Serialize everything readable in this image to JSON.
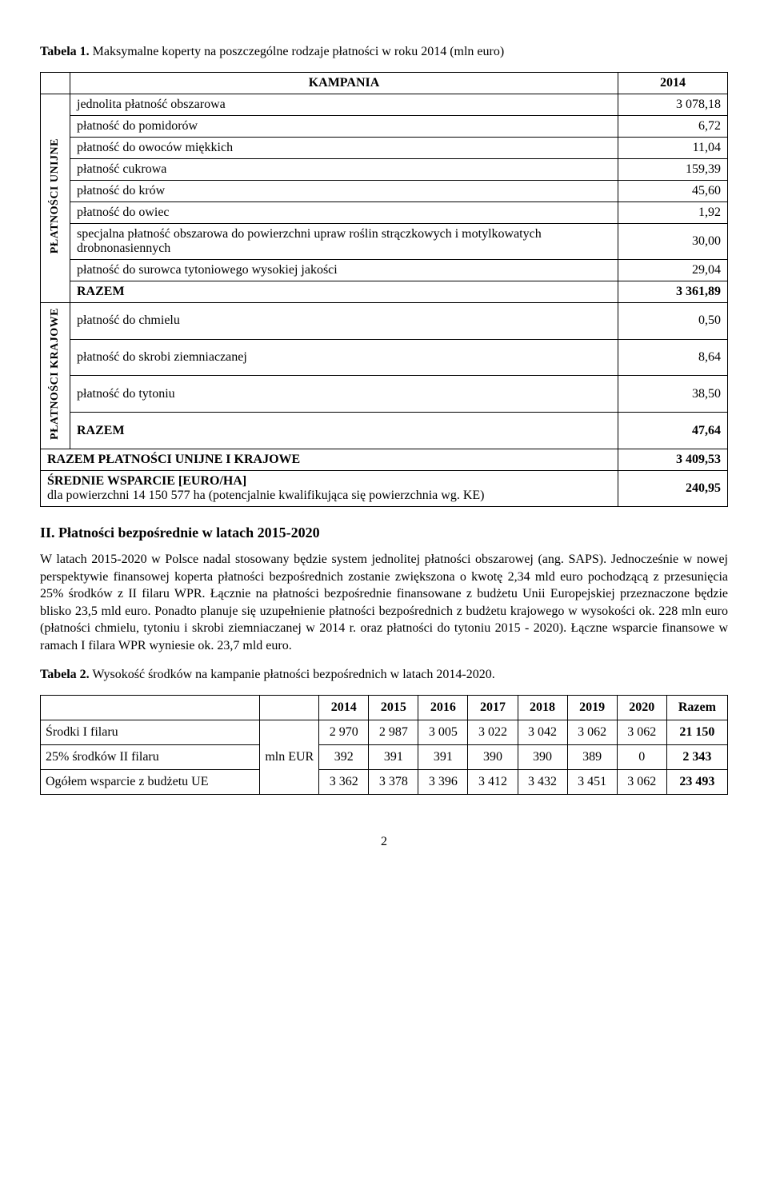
{
  "table1": {
    "caption": "Tabela 1. Maksymalne koperty na poszczególne rodzaje płatności w roku 2014 (mln euro)",
    "header_campaign": "KAMPANIA",
    "header_year": "2014",
    "vlabel_unijne": "PŁATNOŚCI UNIJNE",
    "vlabel_krajowe": "PŁATNOŚCI\nKRAJOWE",
    "unijne_rows": [
      {
        "label": "jednolita płatność obszarowa",
        "value": "3 078,18"
      },
      {
        "label": "płatność do pomidorów",
        "value": "6,72"
      },
      {
        "label": "płatność do owoców miękkich",
        "value": "11,04"
      },
      {
        "label": "płatność cukrowa",
        "value": "159,39"
      },
      {
        "label": "płatność do krów",
        "value": "45,60"
      },
      {
        "label": "płatność do owiec",
        "value": "1,92"
      },
      {
        "label": "specjalna płatność obszarowa do powierzchni upraw roślin strączkowych i motylkowatych drobnonasiennych",
        "value": "30,00"
      },
      {
        "label": "płatność do surowca tytoniowego wysokiej jakości",
        "value": "29,04"
      }
    ],
    "unijne_razem_label": "RAZEM",
    "unijne_razem_value": "3 361,89",
    "krajowe_rows": [
      {
        "label": "płatność do chmielu",
        "value": "0,50"
      },
      {
        "label": "płatność do skrobi ziemniaczanej",
        "value": "8,64"
      },
      {
        "label": "płatność do tytoniu",
        "value": "38,50"
      }
    ],
    "krajowe_razem_label": "RAZEM",
    "krajowe_razem_value": "47,64",
    "summary_label": "RAZEM PŁATNOŚCI UNIJNE I KRAJOWE",
    "summary_value": "3 409,53",
    "avg_label_main": "ŚREDNIE WSPARCIE [EURO/HA]",
    "avg_label_sub": "dla powierzchni 14 150 577 ha (potencjalnie kwalifikująca się powierzchnia wg. KE)",
    "avg_value": "240,95"
  },
  "section2_heading": "II. Płatności bezpośrednie w latach 2015-2020",
  "section2_paragraph": "W latach 2015-2020 w Polsce nadal stosowany będzie system jednolitej płatności obszarowej (ang. SAPS). Jednocześnie w nowej perspektywie finansowej koperta płatności bezpośrednich zostanie zwiększona o kwotę 2,34 mld euro pochodzącą z przesunięcia 25% środków z II filaru WPR. Łącznie na płatności bezpośrednie finansowane z budżetu Unii Europejskiej przeznaczone będzie blisko 23,5 mld euro. Ponadto planuje się uzupełnienie płatności bezpośrednich z budżetu krajowego w wysokości ok. 228 mln euro (płatności chmielu, tytoniu i skrobi ziemniaczanej w 2014 r. oraz płatności do tytoniu 2015 - 2020). Łączne wsparcie finansowe w ramach I filara WPR wyniesie ok. 23,7 mld euro.",
  "table2": {
    "caption": "Tabela 2. Wysokość środków na kampanie płatności bezpośrednich w latach 2014-2020.",
    "years": [
      "2014",
      "2015",
      "2016",
      "2017",
      "2018",
      "2019",
      "2020"
    ],
    "razem_header": "Razem",
    "unit_label": "mln EUR",
    "rows": [
      {
        "label": "Środki I filaru",
        "cells": [
          "2 970",
          "2 987",
          "3 005",
          "3 022",
          "3 042",
          "3 062",
          "3 062"
        ],
        "sum": "21 150"
      },
      {
        "label": "25% środków II filaru",
        "cells": [
          "392",
          "391",
          "391",
          "390",
          "390",
          "389",
          "0"
        ],
        "sum": "2 343"
      },
      {
        "label": "Ogółem wsparcie z budżetu UE",
        "cells": [
          "3 362",
          "3 378",
          "3 396",
          "3 412",
          "3 432",
          "3 451",
          "3 062"
        ],
        "sum": "23 493"
      }
    ]
  },
  "page_number": "2"
}
